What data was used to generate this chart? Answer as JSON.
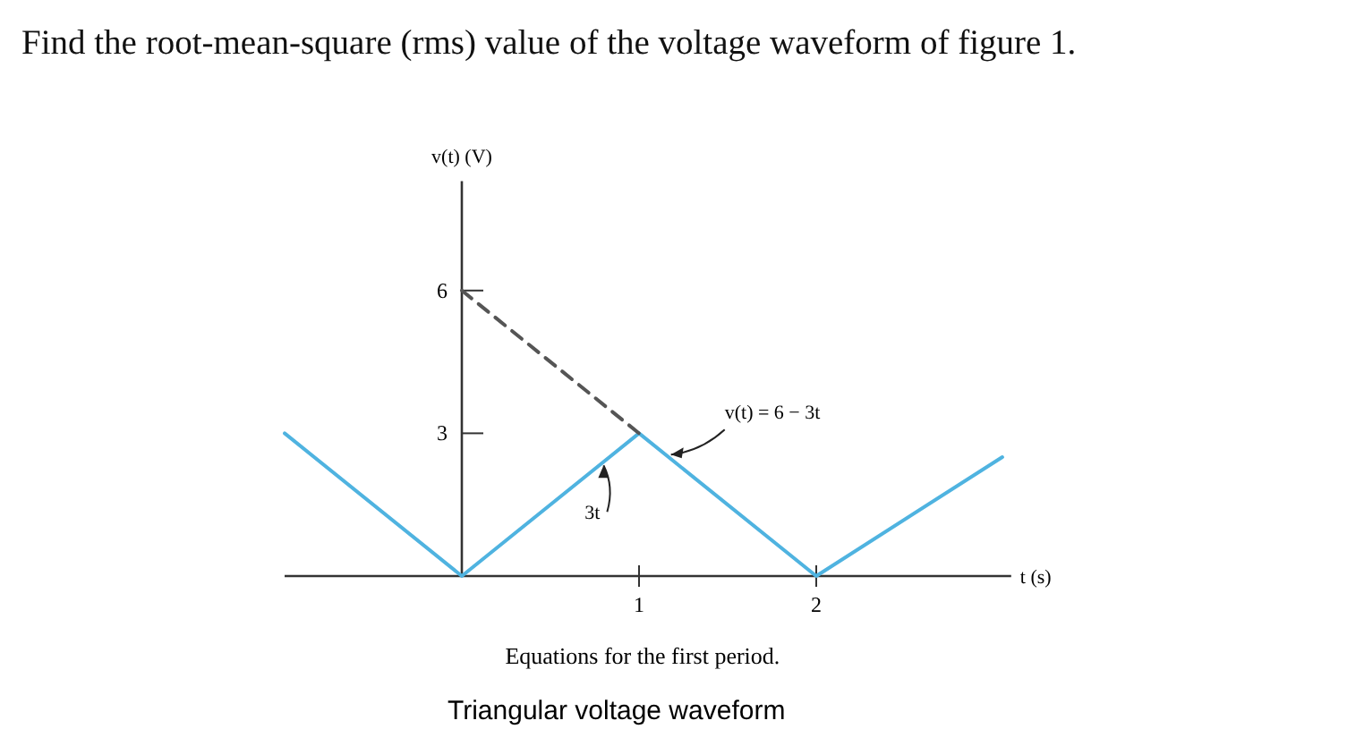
{
  "chart_data": {
    "type": "line",
    "title": "Find the root-mean-square (rms) value of the voltage waveform of figure 1.",
    "xlabel": "t (s)",
    "ylabel": "v(t) (V)",
    "series": [
      {
        "x": [
          -1,
          0,
          1,
          2,
          3.05
        ],
        "values": [
          3,
          0,
          3,
          0,
          2.5
        ],
        "color": "#4fb3e0"
      },
      {
        "x": [
          0,
          1
        ],
        "values": [
          6,
          3
        ],
        "color": "#555555",
        "line_style": "dashed"
      }
    ],
    "xlim": [
      -1,
      3.1
    ],
    "ylim": [
      0,
      8.3
    ],
    "xticks": [
      1,
      2
    ],
    "yticks": [
      3,
      6
    ],
    "grid": false,
    "marker": "none",
    "annotations": [
      {
        "text": "v(t) = 6 − 3t",
        "x": 1.15,
        "y": 2.55
      },
      {
        "text": "3t",
        "x": 0.8,
        "y": 2.4
      },
      "Equations for the first period.",
      "Triangular voltage waveform"
    ]
  }
}
